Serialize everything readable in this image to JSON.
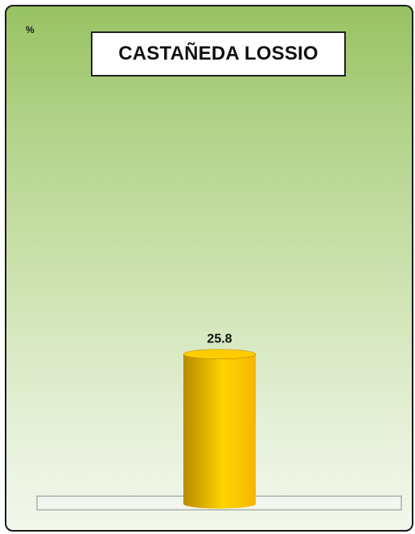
{
  "chart_data": {
    "type": "bar",
    "title": "CASTAÑEDA LOSSIO",
    "ylabel": "%",
    "xlabel": "",
    "categories": [
      ""
    ],
    "values": [
      25.8
    ],
    "data_labels": [
      "25.8"
    ],
    "ylim": [
      0,
      100
    ],
    "grid": false,
    "legend": "none",
    "colors": {
      "bar_light": "#ffd400",
      "bar_mid": "#f4b800",
      "bar_dark": "#b88a00",
      "bar_top": "#ffcc00",
      "floor_fill": "#f3f6ee",
      "floor_stroke": "#8a8a8a"
    }
  }
}
